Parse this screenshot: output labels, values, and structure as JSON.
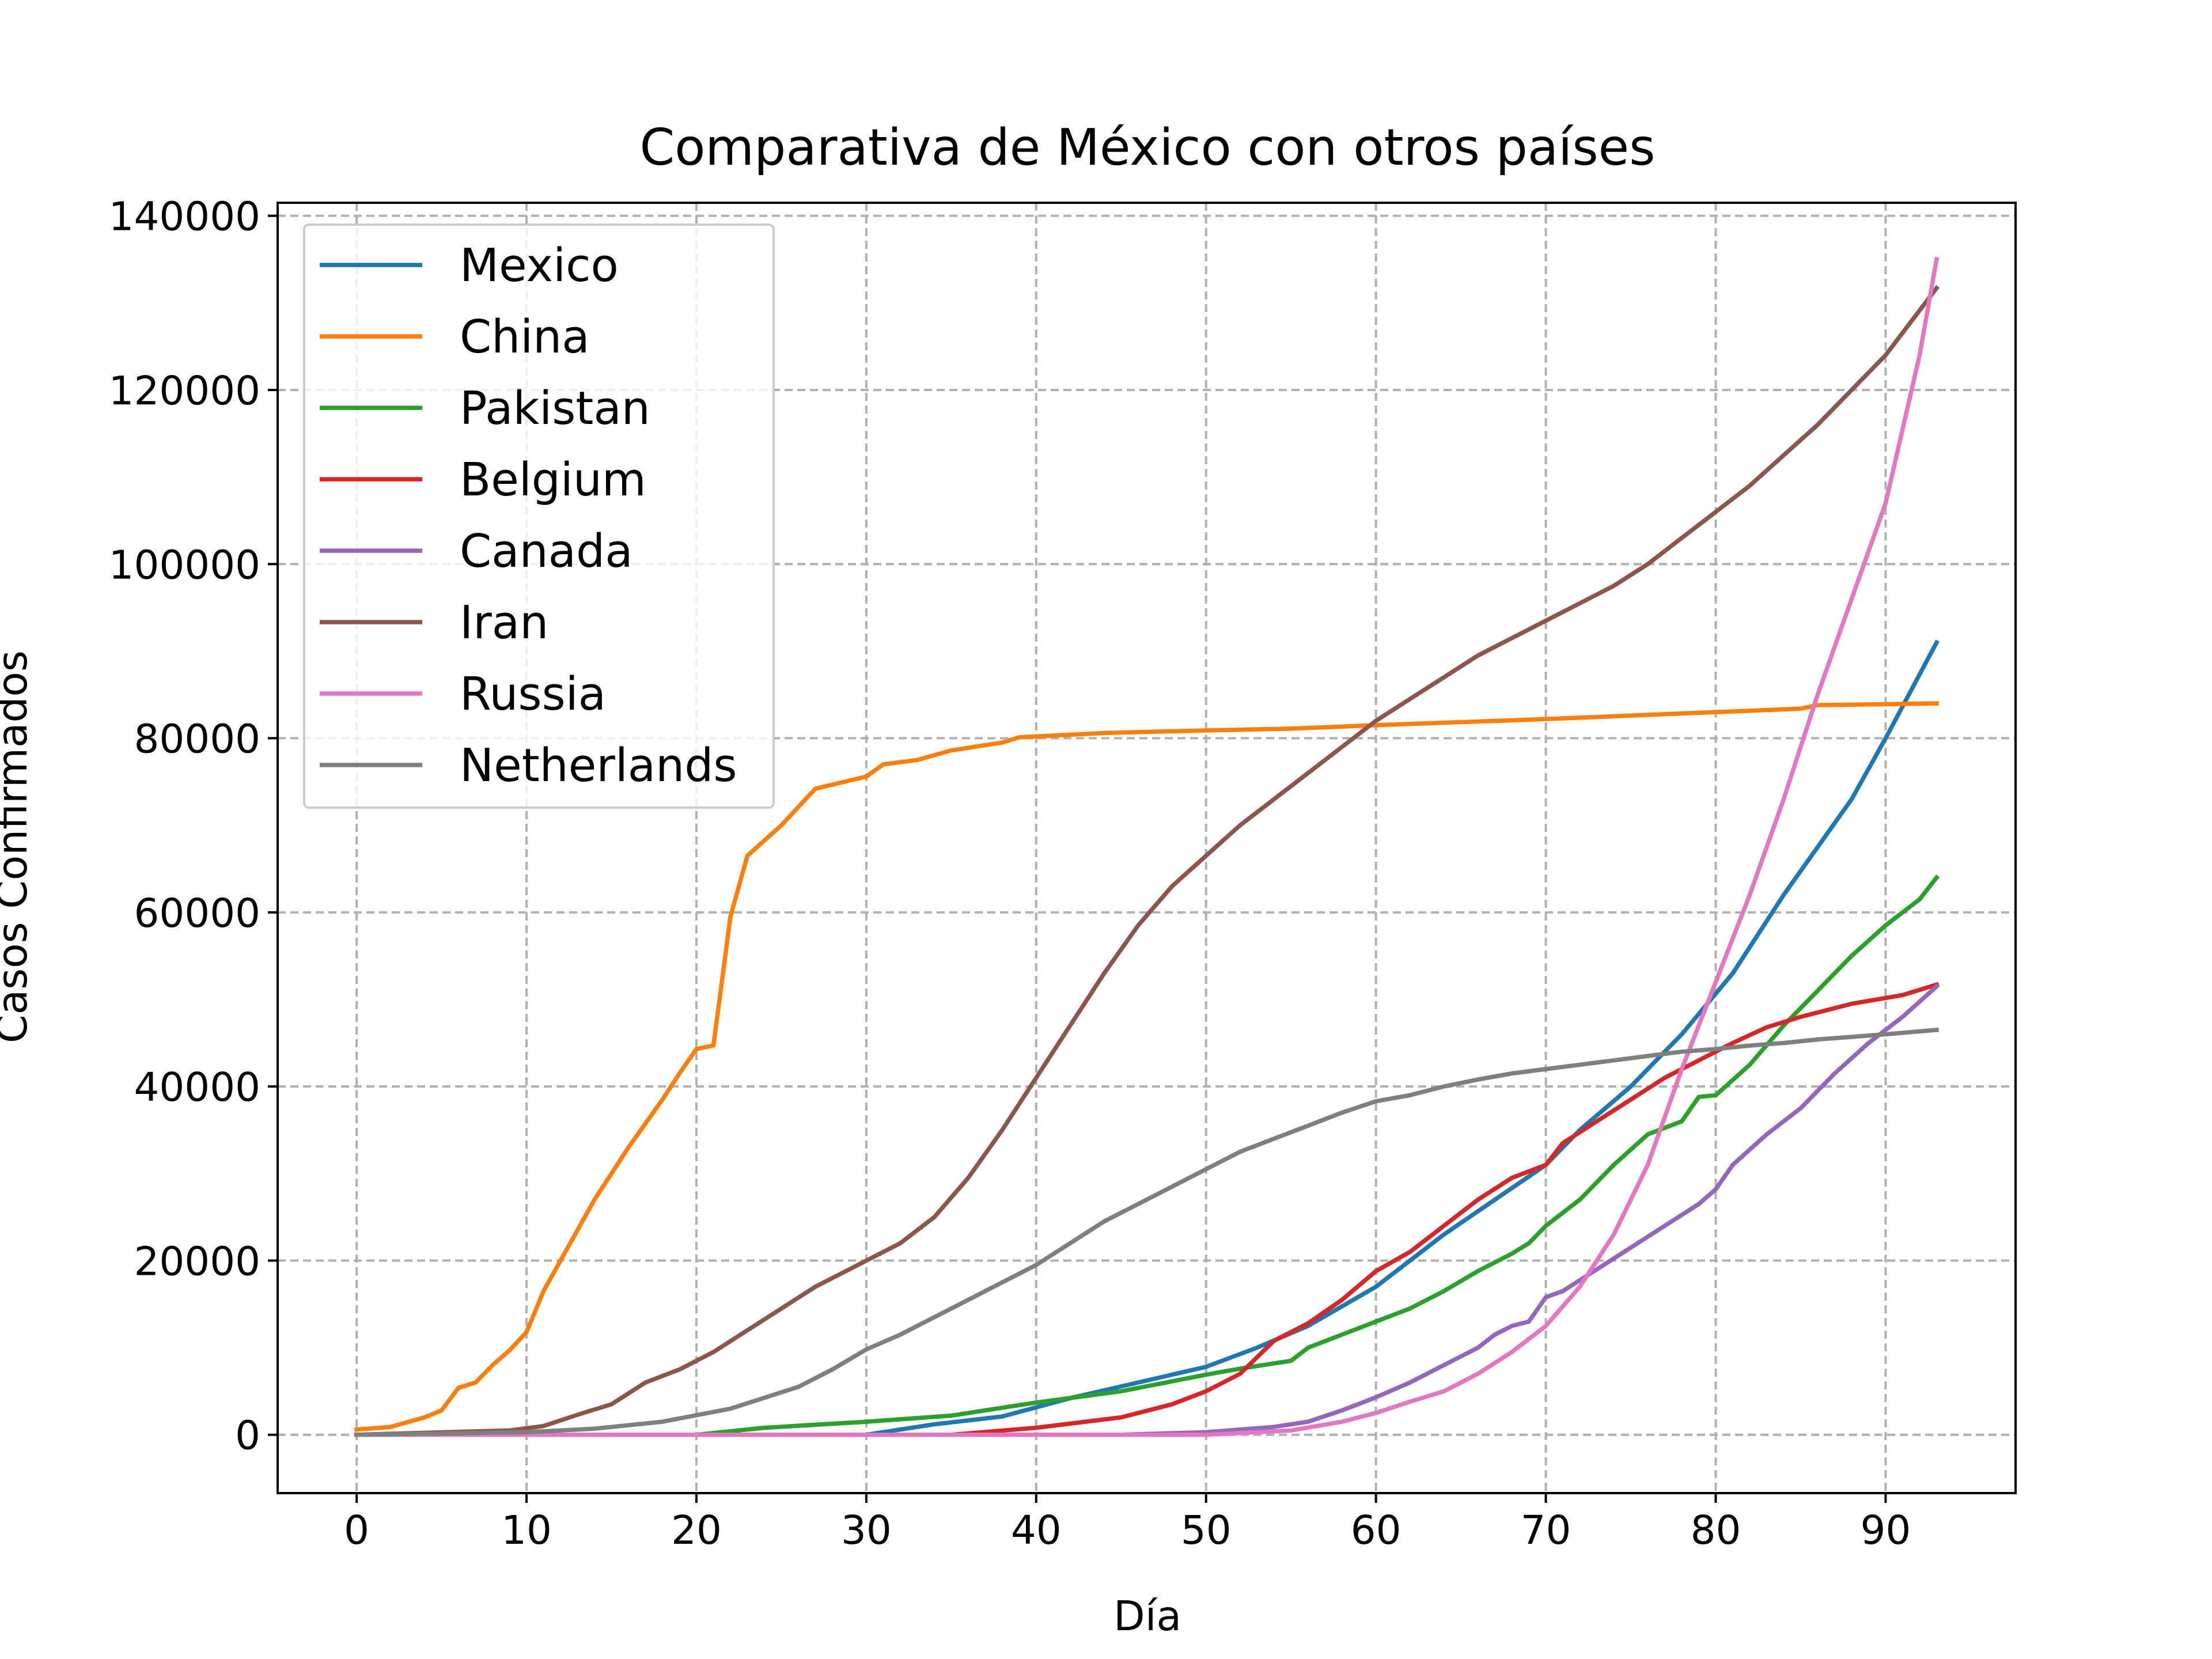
{
  "chart_data": {
    "type": "line",
    "title": "Comparativa de México con otros países",
    "xlabel": "Día",
    "ylabel": "Casos Confirmados",
    "xlim": [
      -4.65,
      97.65
    ],
    "ylim": [
      -6700,
      141500
    ],
    "xticks": [
      0,
      10,
      20,
      30,
      40,
      50,
      60,
      70,
      80,
      90
    ],
    "xtick_labels": [
      "0",
      "10",
      "20",
      "30",
      "40",
      "50",
      "60",
      "70",
      "80",
      "90"
    ],
    "yticks": [
      0,
      20000,
      40000,
      60000,
      80000,
      100000,
      120000,
      140000
    ],
    "ytick_labels": [
      "0",
      "20000",
      "40000",
      "60000",
      "80000",
      "100000",
      "120000",
      "140000"
    ],
    "grid": true,
    "legend_position": "top-left",
    "series": [
      {
        "name": "Mexico",
        "color": "#1f77b4",
        "points": [
          [
            0,
            0
          ],
          [
            30,
            0
          ],
          [
            34,
            1200
          ],
          [
            38,
            2100
          ],
          [
            42,
            4200
          ],
          [
            46,
            6000
          ],
          [
            50,
            7800
          ],
          [
            53,
            10000
          ],
          [
            56,
            12500
          ],
          [
            60,
            17000
          ],
          [
            64,
            23000
          ],
          [
            67,
            27000
          ],
          [
            70,
            31000
          ],
          [
            72,
            35000
          ],
          [
            75,
            40000
          ],
          [
            78,
            46000
          ],
          [
            81,
            53000
          ],
          [
            84,
            62000
          ],
          [
            86,
            67500
          ],
          [
            88,
            73000
          ],
          [
            90,
            80000
          ],
          [
            93,
            91000
          ]
        ]
      },
      {
        "name": "China",
        "color": "#ff7f0e",
        "points": [
          [
            0,
            600
          ],
          [
            2,
            900
          ],
          [
            4,
            2000
          ],
          [
            5,
            2800
          ],
          [
            6,
            5400
          ],
          [
            7,
            6000
          ],
          [
            8,
            8000
          ],
          [
            9,
            9700
          ],
          [
            10,
            11800
          ],
          [
            11,
            16500
          ],
          [
            12,
            20000
          ],
          [
            14,
            27000
          ],
          [
            16,
            33000
          ],
          [
            18,
            38500
          ],
          [
            19,
            41500
          ],
          [
            20,
            44300
          ],
          [
            21,
            44700
          ],
          [
            22,
            59500
          ],
          [
            23,
            66500
          ],
          [
            25,
            70000
          ],
          [
            27,
            74200
          ],
          [
            30,
            75600
          ],
          [
            31,
            77000
          ],
          [
            33,
            77500
          ],
          [
            35,
            78600
          ],
          [
            38,
            79500
          ],
          [
            39,
            80100
          ],
          [
            44,
            80600
          ],
          [
            50,
            80900
          ],
          [
            55,
            81100
          ],
          [
            60,
            81500
          ],
          [
            70,
            82200
          ],
          [
            80,
            83000
          ],
          [
            85,
            83400
          ],
          [
            86,
            83800
          ],
          [
            93,
            84000
          ]
        ]
      },
      {
        "name": "Pakistan",
        "color": "#2ca02c",
        "points": [
          [
            0,
            0
          ],
          [
            20,
            0
          ],
          [
            24,
            800
          ],
          [
            30,
            1500
          ],
          [
            35,
            2200
          ],
          [
            40,
            3700
          ],
          [
            45,
            5000
          ],
          [
            50,
            6900
          ],
          [
            52,
            7600
          ],
          [
            55,
            8500
          ],
          [
            56,
            10000
          ],
          [
            58,
            11500
          ],
          [
            60,
            13000
          ],
          [
            62,
            14500
          ],
          [
            64,
            16500
          ],
          [
            66,
            18800
          ],
          [
            68,
            20800
          ],
          [
            69,
            22000
          ],
          [
            70,
            24000
          ],
          [
            72,
            27000
          ],
          [
            74,
            31000
          ],
          [
            76,
            34500
          ],
          [
            78,
            36000
          ],
          [
            79,
            38800
          ],
          [
            80,
            39000
          ],
          [
            82,
            42500
          ],
          [
            84,
            47000
          ],
          [
            86,
            51000
          ],
          [
            88,
            55000
          ],
          [
            90,
            58500
          ],
          [
            92,
            61500
          ],
          [
            93,
            64000
          ]
        ]
      },
      {
        "name": "Belgium",
        "color": "#d62728",
        "points": [
          [
            0,
            0
          ],
          [
            35,
            0
          ],
          [
            40,
            800
          ],
          [
            45,
            2000
          ],
          [
            48,
            3500
          ],
          [
            50,
            5000
          ],
          [
            52,
            7000
          ],
          [
            54,
            10800
          ],
          [
            56,
            12800
          ],
          [
            58,
            15500
          ],
          [
            60,
            18800
          ],
          [
            62,
            21000
          ],
          [
            64,
            24000
          ],
          [
            66,
            27000
          ],
          [
            68,
            29500
          ],
          [
            70,
            31000
          ],
          [
            71,
            33500
          ],
          [
            73,
            36000
          ],
          [
            75,
            38500
          ],
          [
            77,
            41000
          ],
          [
            79,
            43000
          ],
          [
            81,
            45000
          ],
          [
            83,
            46800
          ],
          [
            85,
            48000
          ],
          [
            88,
            49500
          ],
          [
            91,
            50500
          ],
          [
            93,
            51700
          ]
        ]
      },
      {
        "name": "Canada",
        "color": "#9467bd",
        "points": [
          [
            0,
            0
          ],
          [
            45,
            0
          ],
          [
            50,
            300
          ],
          [
            52,
            600
          ],
          [
            54,
            900
          ],
          [
            56,
            1500
          ],
          [
            58,
            2800
          ],
          [
            60,
            4300
          ],
          [
            62,
            6000
          ],
          [
            64,
            8000
          ],
          [
            66,
            10000
          ],
          [
            67,
            11500
          ],
          [
            68,
            12500
          ],
          [
            69,
            13000
          ],
          [
            70,
            15800
          ],
          [
            71,
            16500
          ],
          [
            73,
            19000
          ],
          [
            75,
            21500
          ],
          [
            77,
            24000
          ],
          [
            79,
            26500
          ],
          [
            80,
            28200
          ],
          [
            81,
            31000
          ],
          [
            83,
            34500
          ],
          [
            85,
            37500
          ],
          [
            87,
            41500
          ],
          [
            89,
            45000
          ],
          [
            91,
            48000
          ],
          [
            93,
            51500
          ]
        ]
      },
      {
        "name": "Iran",
        "color": "#8c564b",
        "points": [
          [
            0,
            0
          ],
          [
            9,
            500
          ],
          [
            11,
            1000
          ],
          [
            13,
            2300
          ],
          [
            15,
            3500
          ],
          [
            17,
            6000
          ],
          [
            19,
            7500
          ],
          [
            21,
            9500
          ],
          [
            23,
            12000
          ],
          [
            25,
            14500
          ],
          [
            27,
            17000
          ],
          [
            30,
            20000
          ],
          [
            32,
            22000
          ],
          [
            34,
            25000
          ],
          [
            36,
            29500
          ],
          [
            38,
            35000
          ],
          [
            40,
            41000
          ],
          [
            42,
            47000
          ],
          [
            44,
            53000
          ],
          [
            46,
            58500
          ],
          [
            48,
            63000
          ],
          [
            50,
            66500
          ],
          [
            52,
            70000
          ],
          [
            54,
            73000
          ],
          [
            56,
            76000
          ],
          [
            58,
            79000
          ],
          [
            60,
            82000
          ],
          [
            62,
            84500
          ],
          [
            64,
            87000
          ],
          [
            66,
            89500
          ],
          [
            68,
            91500
          ],
          [
            70,
            93500
          ],
          [
            72,
            95500
          ],
          [
            74,
            97500
          ],
          [
            76,
            100000
          ],
          [
            78,
            103000
          ],
          [
            80,
            106000
          ],
          [
            82,
            109000
          ],
          [
            84,
            112500
          ],
          [
            86,
            116000
          ],
          [
            88,
            120000
          ],
          [
            90,
            124000
          ],
          [
            93,
            131700
          ]
        ]
      },
      {
        "name": "Russia",
        "color": "#e377c2",
        "points": [
          [
            0,
            0
          ],
          [
            50,
            0
          ],
          [
            55,
            500
          ],
          [
            58,
            1500
          ],
          [
            60,
            2500
          ],
          [
            62,
            3800
          ],
          [
            64,
            5000
          ],
          [
            66,
            7000
          ],
          [
            68,
            9500
          ],
          [
            70,
            12500
          ],
          [
            72,
            17000
          ],
          [
            74,
            23000
          ],
          [
            76,
            31000
          ],
          [
            78,
            42000
          ],
          [
            80,
            52000
          ],
          [
            82,
            62000
          ],
          [
            84,
            73000
          ],
          [
            86,
            85000
          ],
          [
            88,
            96000
          ],
          [
            90,
            107000
          ],
          [
            92,
            124000
          ],
          [
            93,
            135000
          ]
        ]
      },
      {
        "name": "Netherlands",
        "color": "#7f7f7f",
        "points": [
          [
            0,
            0
          ],
          [
            10,
            300
          ],
          [
            14,
            700
          ],
          [
            18,
            1500
          ],
          [
            22,
            3000
          ],
          [
            26,
            5500
          ],
          [
            28,
            7500
          ],
          [
            30,
            9800
          ],
          [
            32,
            11500
          ],
          [
            34,
            13500
          ],
          [
            36,
            15500
          ],
          [
            38,
            17500
          ],
          [
            40,
            19500
          ],
          [
            42,
            22000
          ],
          [
            44,
            24500
          ],
          [
            46,
            26500
          ],
          [
            48,
            28500
          ],
          [
            50,
            30500
          ],
          [
            52,
            32500
          ],
          [
            54,
            34000
          ],
          [
            56,
            35500
          ],
          [
            58,
            37000
          ],
          [
            60,
            38300
          ],
          [
            62,
            39000
          ],
          [
            64,
            40000
          ],
          [
            66,
            40800
          ],
          [
            68,
            41500
          ],
          [
            70,
            42000
          ],
          [
            72,
            42500
          ],
          [
            74,
            43000
          ],
          [
            76,
            43500
          ],
          [
            78,
            44000
          ],
          [
            80,
            44300
          ],
          [
            82,
            44700
          ],
          [
            84,
            45000
          ],
          [
            86,
            45400
          ],
          [
            88,
            45700
          ],
          [
            90,
            46000
          ],
          [
            93,
            46500
          ]
        ]
      }
    ]
  }
}
